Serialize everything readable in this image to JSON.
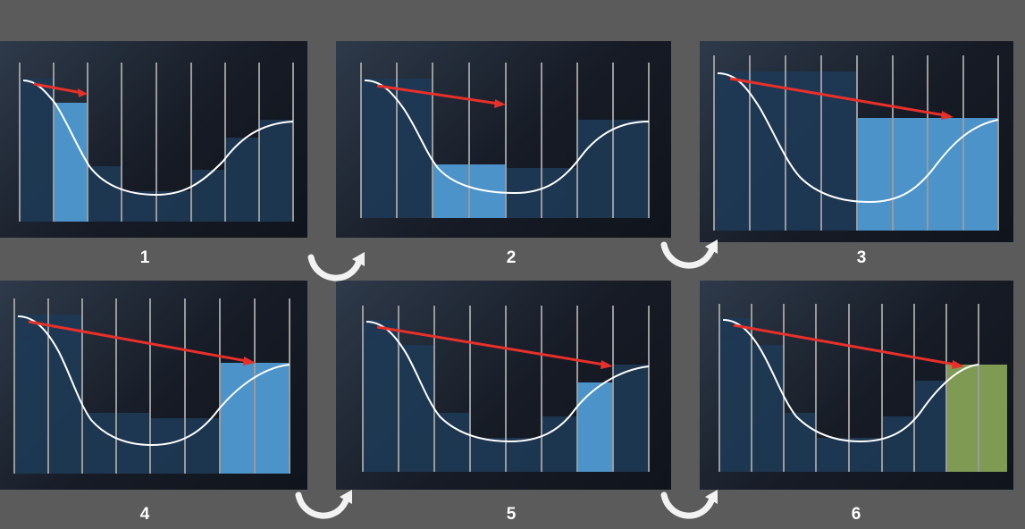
{
  "steps": [
    {
      "label": "1"
    },
    {
      "label": "2"
    },
    {
      "label": "3"
    },
    {
      "label": "4"
    },
    {
      "label": "5"
    },
    {
      "label": "6"
    }
  ],
  "colors": {
    "background": "#5b5b5b",
    "bar_dark": "#1e3a56",
    "bar_highlight": "#4b93c8",
    "bar_final": "#7f9a52",
    "curve": "#ffffff",
    "arrow": "#e8302a",
    "divider": "#9a9a9a"
  },
  "icons": {
    "step_transition": "curved-arrow-icon"
  }
}
